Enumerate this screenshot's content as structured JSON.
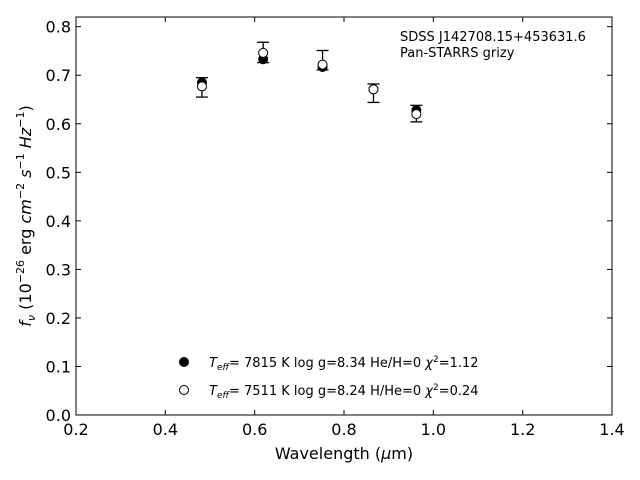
{
  "chart_data": {
    "type": "scatter",
    "title": "",
    "annotation": [
      "SDSS J142708.15+453631.6",
      "Pan-STARRS grizy"
    ],
    "xlabel": "Wavelength (μm)",
    "ylabel": "fν (10⁻²⁶ erg cm⁻² s⁻¹ Hz⁻¹)",
    "xlim": [
      0.2,
      1.4
    ],
    "ylim": [
      0.0,
      0.82
    ],
    "xticks": [
      "0.2",
      "0.4",
      "0.6",
      "0.8",
      "1.0",
      "1.2",
      "1.4"
    ],
    "yticks": [
      "0.0",
      "0.1",
      "0.2",
      "0.3",
      "0.4",
      "0.5",
      "0.6",
      "0.7",
      "0.8"
    ],
    "observed": {
      "x": [
        0.482,
        0.619,
        0.752,
        0.866,
        0.962
      ],
      "y": [
        0.675,
        0.747,
        0.731,
        0.663,
        0.621
      ],
      "yerr": [
        0.02,
        0.021,
        0.02,
        0.019,
        0.017
      ]
    },
    "series": [
      {
        "name": "Teff= 7815 K log g=8.34 He/H=0 χ²=1.12",
        "marker": "filled-circle",
        "x": [
          0.482,
          0.619,
          0.752,
          0.866,
          0.962
        ],
        "y": [
          0.685,
          0.733,
          0.717,
          0.671,
          0.628
        ]
      },
      {
        "name": "Teff= 7511 K log g=8.24 H/He=0 χ²=0.24",
        "marker": "open-circle",
        "x": [
          0.482,
          0.619,
          0.752,
          0.866,
          0.962
        ],
        "y": [
          0.677,
          0.746,
          0.722,
          0.671,
          0.62
        ]
      }
    ],
    "legend_position": "lower-center",
    "grid": false
  }
}
